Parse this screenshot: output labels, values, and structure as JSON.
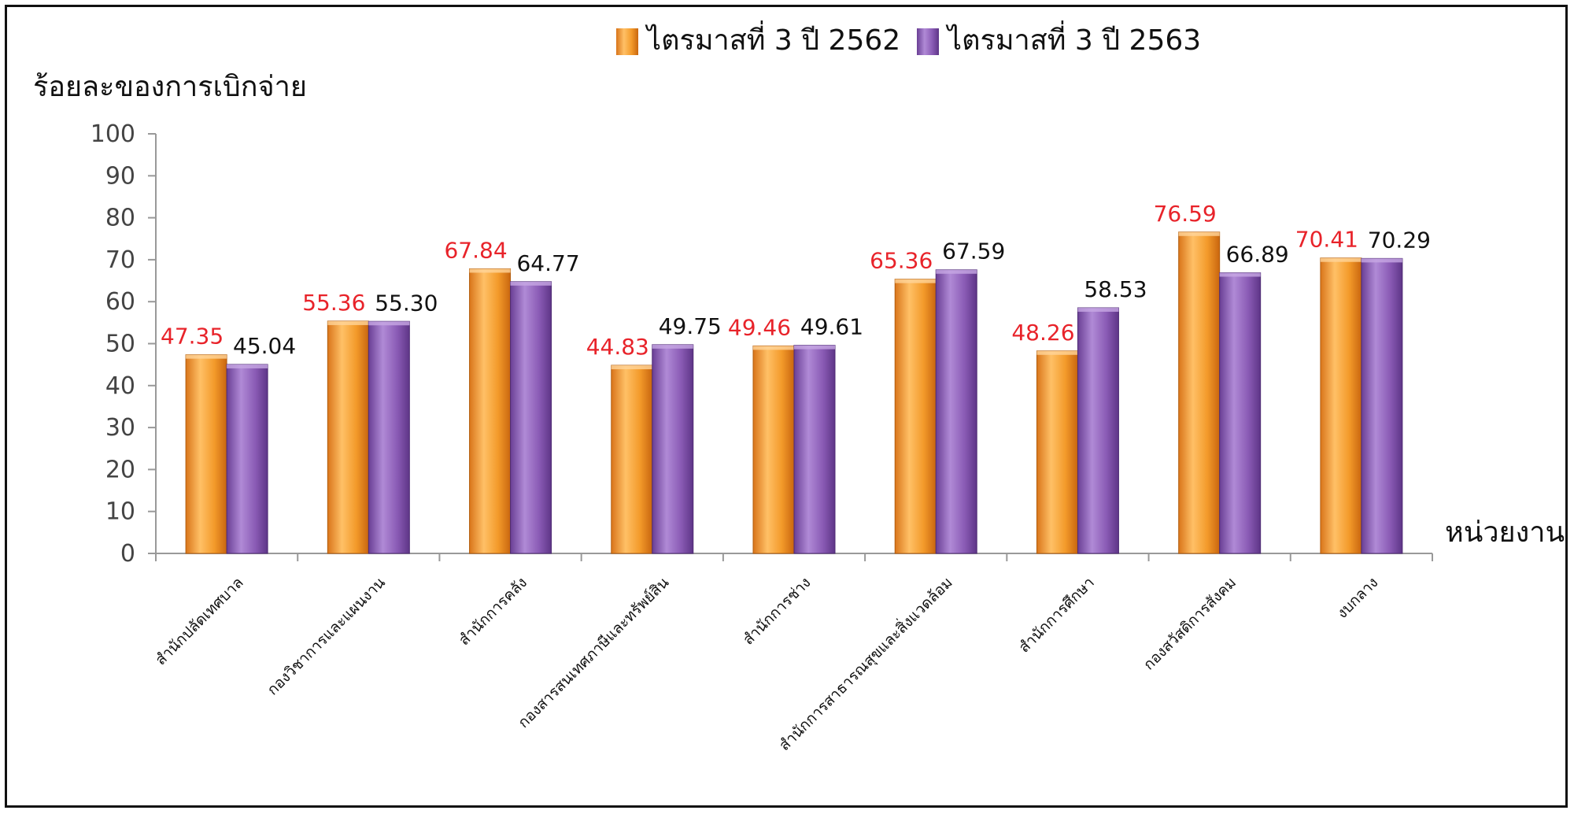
{
  "chart_data": {
    "type": "bar",
    "ylabel": "ร้อยละของการเบิกจ่าย",
    "xlabel": "หน่วยงาน",
    "ylim": [
      0,
      100
    ],
    "yticks": [
      0,
      10,
      20,
      30,
      40,
      50,
      60,
      70,
      80,
      90,
      100
    ],
    "grid": false,
    "legend_position": "top-center",
    "categories": [
      "สำนักปลัดเทศบาล",
      "กองวิชาการและแผนงาน",
      "สำนักการคลัง",
      "กองสารสนเทศภาษีและทรัพย์สิน",
      "สำนักการช่าง",
      "สำนักการสาธารณสุขและสิ่งแวดล้อม",
      "สำนักการศึกษา",
      "กองสวัสดิการสังคม",
      "งบกลาง"
    ],
    "series": [
      {
        "name": "ไตรมาสที่ 3 ปี 2562",
        "color": "#F39A2A",
        "label_color": "#E8232A",
        "values": [
          47.35,
          55.36,
          67.84,
          44.83,
          49.46,
          65.36,
          48.26,
          76.59,
          70.41
        ],
        "labels": [
          "47.35",
          "55.36",
          "67.84",
          "44.83",
          "49.46",
          "65.36",
          "48.26",
          "76.59",
          "70.41"
        ]
      },
      {
        "name": "ไตรมาสที่ 3 ปี 2563",
        "color": "#8A5BB5",
        "label_color": "#111111",
        "values": [
          45.04,
          55.3,
          64.77,
          49.75,
          49.61,
          67.59,
          58.53,
          66.89,
          70.29
        ],
        "labels": [
          "45.04",
          "55.30",
          "64.77",
          "49.75",
          "49.61",
          "67.59",
          "58.53",
          "66.89",
          "70.29"
        ]
      }
    ]
  }
}
